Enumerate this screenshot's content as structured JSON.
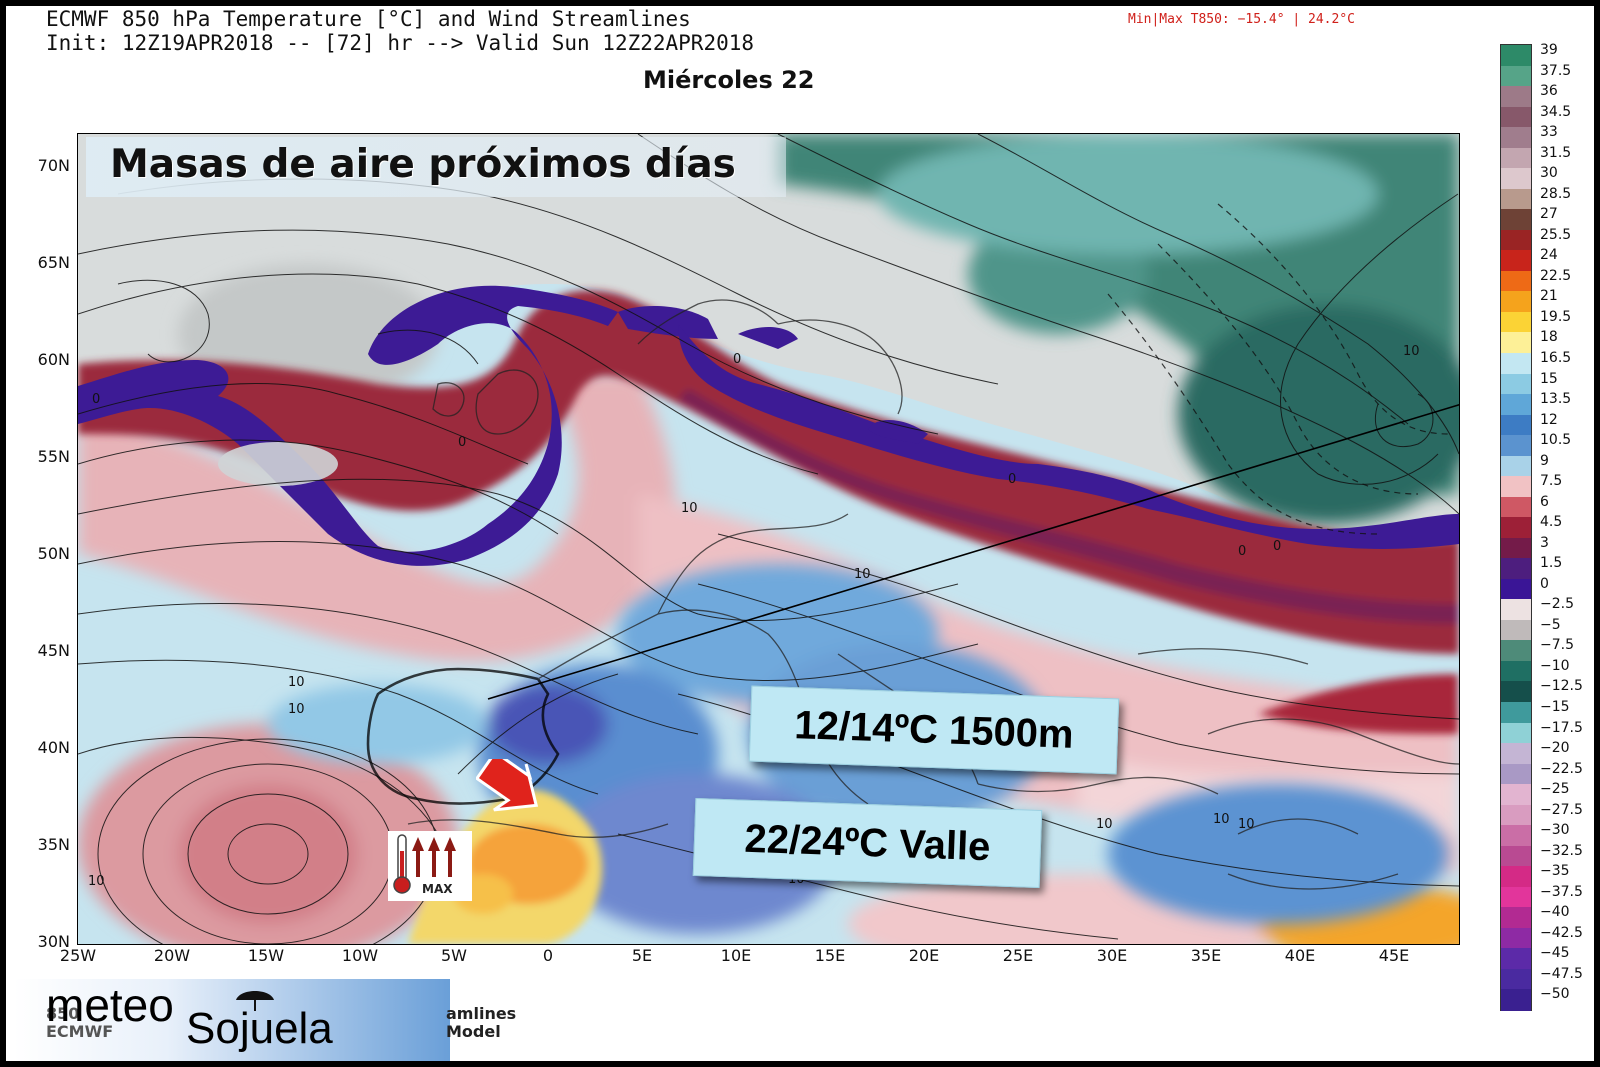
{
  "header": {
    "line1": "ECMWF 850 hPa Temperature [°C] and Wind Streamlines",
    "line2": "Init: 12Z19APR2018 -- [72] hr --> Valid Sun 12Z22APR2018",
    "minmax": "Min|Max T850: −15.4° |  24.2°C",
    "day": "Miércoles 22"
  },
  "map": {
    "title": "Masas de aire próximos días",
    "label_altitude": "12/14ºC 1500m",
    "label_valley": "22/24ºC Valle",
    "max_icon_label": "MAX",
    "contour_labels": [
      "0",
      "0",
      "0",
      "0",
      "0",
      "0",
      "10",
      "10",
      "10",
      "10",
      "10",
      "10",
      "10",
      "10",
      "10",
      "10"
    ],
    "lat_ticks": [
      "70N",
      "65N",
      "60N",
      "55N",
      "50N",
      "45N",
      "40N",
      "35N",
      "30N"
    ],
    "lon_ticks": [
      "25W",
      "20W",
      "15W",
      "10W",
      "5W",
      "0",
      "5E",
      "10E",
      "15E",
      "20E",
      "25E",
      "30E",
      "35E",
      "40E",
      "45E"
    ]
  },
  "colorbar": {
    "ticks": [
      "39",
      "37.5",
      "36",
      "34.5",
      "33",
      "31.5",
      "30",
      "28.5",
      "27",
      "25.5",
      "24",
      "22.5",
      "21",
      "19.5",
      "18",
      "16.5",
      "15",
      "13.5",
      "12",
      "10.5",
      "9",
      "7.5",
      "6",
      "4.5",
      "3",
      "1.5",
      "0",
      "−2.5",
      "−5",
      "−7.5",
      "−10",
      "−12.5",
      "−15",
      "−17.5",
      "−20",
      "−22.5",
      "−25",
      "−27.5",
      "−30",
      "−32.5",
      "−35",
      "−37.5",
      "−40",
      "−42.5",
      "−45",
      "−47.5",
      "−50"
    ],
    "colors": [
      "#2d8a68",
      "#56a488",
      "#9d7a88",
      "#87586a",
      "#a07d8d",
      "#c3a6b0",
      "#ddc8cd",
      "#b89a8d",
      "#6e4236",
      "#9a2424",
      "#c8241b",
      "#ee6a16",
      "#f5a31c",
      "#fbd335",
      "#fdf097",
      "#c3e7f2",
      "#8ccbe3",
      "#5fa7d8",
      "#3d7cc4",
      "#5b93cf",
      "#a9d2e8",
      "#f1c2c4",
      "#cf5864",
      "#9d2037",
      "#741b49",
      "#4d1e7e",
      "#3a1596",
      "#ede2e2",
      "#bfbaba",
      "#4e8b79",
      "#1f6f63",
      "#154f4b",
      "#3f9a9c",
      "#8fd1d6",
      "#c4b5d4",
      "#a999c5",
      "#e2b4d0",
      "#d99cc0",
      "#ca6ea6",
      "#b94a92",
      "#d42a86",
      "#e2359b",
      "#b22a92",
      "#8e2aa4",
      "#5c2aa8",
      "#4a2aa0",
      "#3a2090"
    ]
  },
  "logo": {
    "meteo": "meteo",
    "sojuela": "Sojuela",
    "ghost1": "850",
    "ghost2": "ECMWF",
    "ghost3": "amlines",
    "ghost4": "Model"
  }
}
